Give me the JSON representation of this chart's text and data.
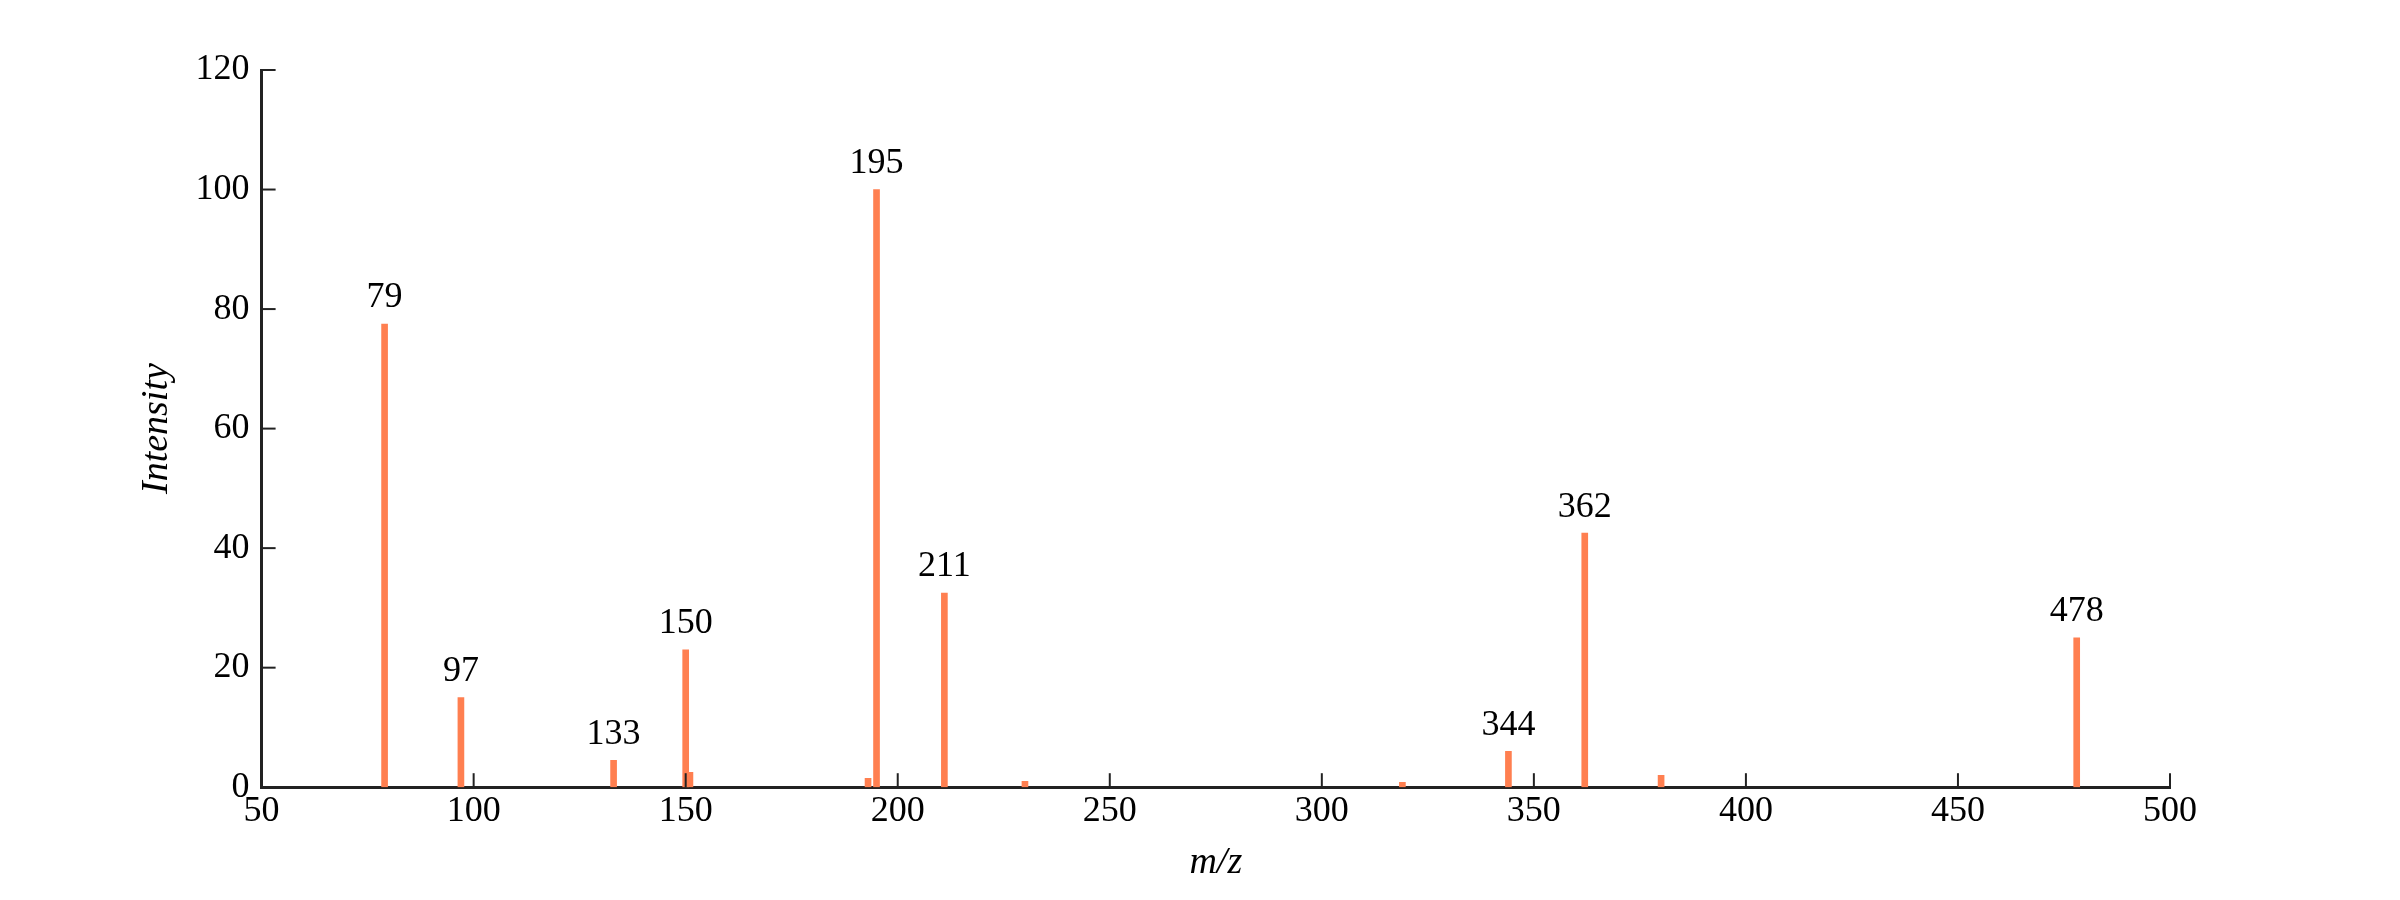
{
  "chart_data": {
    "type": "bar",
    "xlabel": "m/z",
    "ylabel": "Intensity",
    "x": [
      79,
      97,
      133,
      150,
      151,
      193,
      195,
      211,
      230,
      319,
      344,
      362,
      380,
      478
    ],
    "series": [
      {
        "color": "#ff7f50",
        "values": [
          77.5,
          15,
          4.5,
          23,
          2.5,
          1.5,
          100,
          32.5,
          1,
          0.8,
          6,
          42.5,
          2,
          25
        ]
      }
    ],
    "xlim": [
      50,
      500
    ],
    "xticks": [
      50,
      100,
      150,
      200,
      250,
      300,
      350,
      400,
      450,
      500
    ],
    "ylim": [
      0,
      120
    ],
    "yticks": [
      0,
      20,
      40,
      60,
      80,
      100,
      120
    ],
    "grid": false,
    "legend": false,
    "annotations": [
      {
        "text": "79",
        "x": 79,
        "y": 77.5
      },
      {
        "text": "97",
        "x": 97,
        "y": 15
      },
      {
        "text": "133",
        "x": 133,
        "y": 4.5
      },
      {
        "text": "150",
        "x": 150,
        "y": 23
      },
      {
        "text": "195",
        "x": 195,
        "y": 100
      },
      {
        "text": "211",
        "x": 211,
        "y": 32.5
      },
      {
        "text": "344",
        "x": 344,
        "y": 6
      },
      {
        "text": "362",
        "x": 362,
        "y": 42.5
      },
      {
        "text": "478",
        "x": 478,
        "y": 25
      }
    ]
  }
}
